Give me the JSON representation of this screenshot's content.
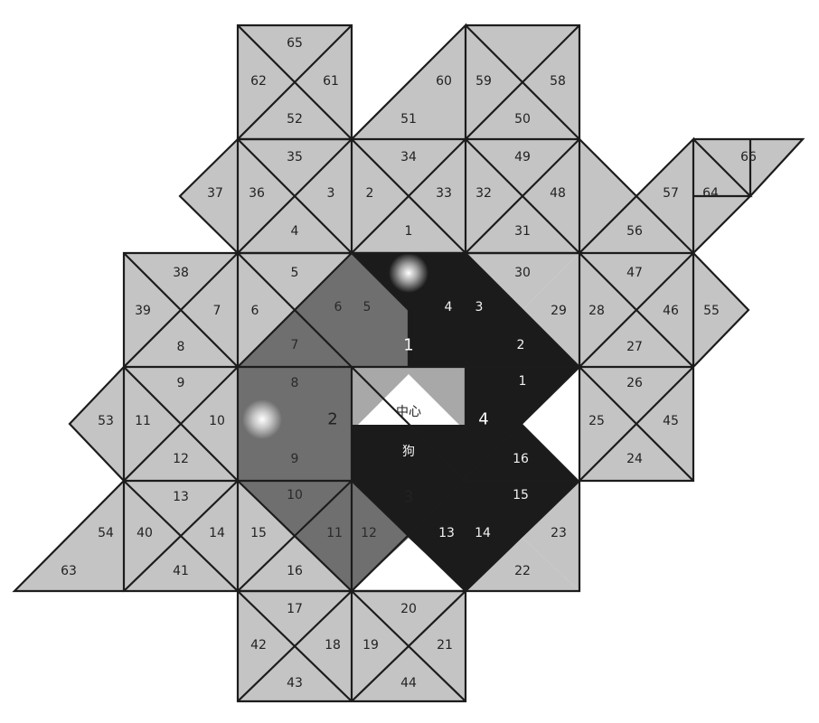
{
  "center": {
    "label": "中心",
    "sublabel": "狗"
  },
  "regions": [
    {
      "id": "1",
      "color": "medium",
      "label": "1"
    },
    {
      "id": "2",
      "color": "medium",
      "label": "2"
    },
    {
      "id": "3",
      "color": "dark",
      "label": "3"
    },
    {
      "id": "4",
      "color": "dark",
      "label": "4"
    }
  ],
  "cells": [
    "1",
    "2",
    "3",
    "4",
    "5",
    "6",
    "7",
    "8",
    "9",
    "10",
    "11",
    "12",
    "13",
    "14",
    "15",
    "16",
    "17",
    "18",
    "19",
    "20",
    "21",
    "22",
    "23",
    "24",
    "25",
    "26",
    "27",
    "28",
    "29",
    "30",
    "31",
    "32",
    "33",
    "34",
    "35",
    "36",
    "37",
    "38",
    "39",
    "40",
    "41",
    "42",
    "43",
    "44",
    "45",
    "46",
    "47",
    "48",
    "49",
    "50",
    "51",
    "52",
    "53",
    "54",
    "55",
    "56",
    "57",
    "58",
    "59",
    "60",
    "61",
    "62",
    "63",
    "64",
    "65",
    "66"
  ],
  "inner_cells": {
    "region_1": [
      "5",
      "6",
      "7",
      "8"
    ],
    "region_4": [
      "1",
      "2",
      "3",
      "4",
      "13",
      "14",
      "15",
      "16"
    ],
    "region_2": [
      "9",
      "10",
      "11",
      "12"
    ]
  },
  "colors": {
    "light": "#c4c4c4",
    "medium": "#6f6f6f",
    "dark": "#1b1b1b",
    "center": "#a8a8a8"
  }
}
